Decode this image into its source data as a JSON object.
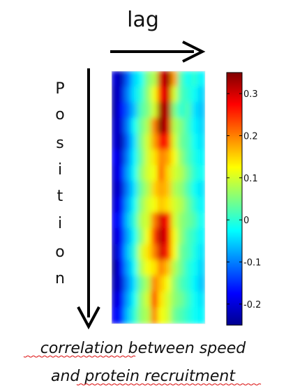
{
  "labels": {
    "x_arrow": "lag",
    "y_arrow_letters": [
      "P",
      "o",
      "s",
      "i",
      "t",
      "i",
      "o",
      "n"
    ],
    "caption_line1": "correlation between speed",
    "caption_line2": "and protein recruitment"
  },
  "chart_data": {
    "type": "heatmap",
    "xlabel": "lag",
    "ylabel": "Position",
    "colormap": "jet",
    "colorbar": {
      "min": -0.25,
      "max": 0.35,
      "ticks": [
        0.3,
        0.2,
        0.1,
        0,
        -0.1,
        -0.2
      ],
      "tick_labels": [
        "0.3",
        "0.2",
        "0.1",
        "0",
        "-0.1",
        "-0.2"
      ]
    },
    "description_grid_note": "approximate values read from color",
    "grid": [
      [
        -0.2,
        -0.22,
        -0.12,
        -0.05,
        -0.02,
        0.05,
        0.08,
        0.3,
        0.33,
        0.18,
        0.02,
        -0.02,
        0.0,
        -0.03
      ],
      [
        -0.22,
        -0.2,
        -0.1,
        -0.04,
        0.0,
        0.06,
        0.12,
        0.28,
        0.3,
        0.1,
        0.02,
        0.0,
        -0.02,
        -0.05
      ],
      [
        -0.23,
        -0.18,
        -0.12,
        -0.06,
        0.02,
        0.05,
        0.1,
        0.33,
        0.32,
        0.05,
        0.0,
        0.02,
        -0.04,
        -0.06
      ],
      [
        -0.21,
        -0.2,
        -0.1,
        -0.02,
        0.04,
        0.08,
        0.2,
        0.35,
        0.3,
        0.08,
        0.05,
        0.01,
        -0.03,
        -0.05
      ],
      [
        -0.2,
        -0.22,
        -0.12,
        -0.04,
        0.05,
        0.1,
        0.18,
        0.28,
        0.25,
        0.1,
        0.04,
        0.02,
        -0.02,
        -0.04
      ],
      [
        -0.18,
        -0.2,
        -0.1,
        -0.03,
        0.04,
        0.1,
        0.14,
        0.2,
        0.18,
        0.12,
        0.06,
        0.02,
        -0.01,
        -0.03
      ],
      [
        -0.2,
        -0.18,
        -0.08,
        -0.02,
        0.06,
        0.1,
        0.12,
        0.22,
        0.15,
        0.1,
        0.08,
        0.04,
        0.0,
        -0.02
      ],
      [
        -0.21,
        -0.2,
        -0.1,
        -0.04,
        0.04,
        0.08,
        0.15,
        0.18,
        0.16,
        0.08,
        0.06,
        0.02,
        -0.02,
        -0.04
      ],
      [
        -0.2,
        -0.18,
        -0.08,
        -0.02,
        0.06,
        0.1,
        0.12,
        0.16,
        0.14,
        0.1,
        0.08,
        0.04,
        0.0,
        -0.03
      ],
      [
        -0.18,
        -0.16,
        -0.06,
        0.0,
        0.08,
        0.1,
        0.2,
        0.3,
        0.26,
        0.1,
        0.06,
        0.04,
        0.02,
        -0.02
      ],
      [
        -0.2,
        -0.18,
        -0.08,
        -0.02,
        0.06,
        0.12,
        0.24,
        0.32,
        0.28,
        0.12,
        0.06,
        0.02,
        0.0,
        -0.03
      ],
      [
        -0.22,
        -0.16,
        -0.06,
        0.0,
        0.1,
        0.14,
        0.2,
        0.3,
        0.25,
        0.12,
        0.04,
        0.02,
        -0.01,
        -0.04
      ],
      [
        -0.24,
        -0.18,
        -0.08,
        -0.02,
        0.08,
        0.12,
        0.14,
        0.2,
        0.16,
        0.08,
        0.04,
        0.0,
        -0.02,
        -0.05
      ],
      [
        -0.22,
        -0.2,
        -0.1,
        -0.04,
        0.04,
        0.08,
        0.2,
        0.16,
        0.12,
        0.06,
        0.02,
        0.0,
        -0.03,
        -0.06
      ],
      [
        -0.2,
        -0.18,
        -0.08,
        -0.02,
        0.06,
        0.1,
        0.24,
        0.14,
        0.1,
        0.06,
        0.04,
        0.01,
        -0.02,
        -0.04
      ],
      [
        -0.18,
        -0.16,
        -0.06,
        0.0,
        0.06,
        0.08,
        0.2,
        0.12,
        0.1,
        0.04,
        0.02,
        0.0,
        -0.02,
        -0.03
      ]
    ]
  },
  "colors": {
    "axis_text": "#111111",
    "arrow": "#000000",
    "spellcheck_underline": "#dd1111"
  }
}
